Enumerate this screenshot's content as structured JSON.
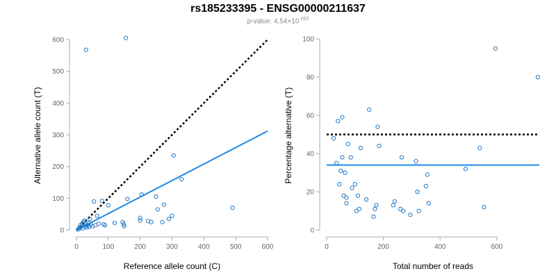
{
  "header": {
    "title": "rs185233395 - ENSG00000211637",
    "subtitle_prefix": "p-value: 4.54×10",
    "subtitle_exponent": "-202"
  },
  "chart_data": [
    {
      "type": "scatter",
      "xlabel": "Reference allele count (C)",
      "ylabel": "Alternative allele count (T)",
      "xlim": [
        0,
        600
      ],
      "ylim": [
        0,
        600
      ],
      "xticks": [
        0,
        100,
        200,
        300,
        400,
        500,
        600
      ],
      "yticks": [
        0,
        100,
        200,
        300,
        400,
        500,
        600
      ],
      "points": [
        [
          5,
          2
        ],
        [
          8,
          4
        ],
        [
          10,
          8
        ],
        [
          12,
          15
        ],
        [
          15,
          10
        ],
        [
          18,
          20
        ],
        [
          20,
          5
        ],
        [
          22,
          25
        ],
        [
          25,
          30
        ],
        [
          28,
          12
        ],
        [
          30,
          18
        ],
        [
          32,
          8
        ],
        [
          35,
          15
        ],
        [
          38,
          22
        ],
        [
          40,
          10
        ],
        [
          42,
          35
        ],
        [
          45,
          18
        ],
        [
          50,
          12
        ],
        [
          55,
          90
        ],
        [
          60,
          15
        ],
        [
          65,
          45
        ],
        [
          70,
          20
        ],
        [
          80,
          92
        ],
        [
          85,
          18
        ],
        [
          90,
          15
        ],
        [
          100,
          78
        ],
        [
          120,
          22
        ],
        [
          145,
          25
        ],
        [
          148,
          18
        ],
        [
          150,
          12
        ],
        [
          160,
          98
        ],
        [
          200,
          38
        ],
        [
          200,
          30
        ],
        [
          205,
          112
        ],
        [
          225,
          28
        ],
        [
          235,
          25
        ],
        [
          250,
          105
        ],
        [
          255,
          65
        ],
        [
          270,
          25
        ],
        [
          275,
          80
        ],
        [
          290,
          35
        ],
        [
          300,
          45
        ],
        [
          305,
          235
        ],
        [
          330,
          160
        ],
        [
          490,
          70
        ],
        [
          30,
          568
        ],
        [
          155,
          605
        ]
      ],
      "fit_line": [
        [
          0,
          0
        ],
        [
          600,
          312
        ]
      ],
      "reference_line": [
        [
          0,
          0
        ],
        [
          600,
          600
        ]
      ]
    },
    {
      "type": "scatter",
      "xlabel": "Total number of reads",
      "ylabel": "Percentage alternative (T)",
      "xlim": [
        0,
        750
      ],
      "ylim": [
        0,
        100
      ],
      "xticks": [
        0,
        200,
        400,
        600
      ],
      "yticks": [
        0,
        20,
        40,
        60,
        80,
        100
      ],
      "points": [
        [
          25,
          48
        ],
        [
          35,
          35
        ],
        [
          40,
          57
        ],
        [
          45,
          24
        ],
        [
          50,
          31
        ],
        [
          55,
          59
        ],
        [
          55,
          38
        ],
        [
          60,
          18
        ],
        [
          65,
          30
        ],
        [
          70,
          14
        ],
        [
          70,
          17
        ],
        [
          75,
          45
        ],
        [
          85,
          38
        ],
        [
          90,
          22
        ],
        [
          100,
          24
        ],
        [
          105,
          10
        ],
        [
          110,
          18
        ],
        [
          115,
          11
        ],
        [
          120,
          43
        ],
        [
          140,
          16
        ],
        [
          150,
          63
        ],
        [
          165,
          7
        ],
        [
          170,
          11
        ],
        [
          175,
          13
        ],
        [
          180,
          54
        ],
        [
          185,
          44
        ],
        [
          235,
          13
        ],
        [
          240,
          15
        ],
        [
          260,
          11
        ],
        [
          265,
          38
        ],
        [
          270,
          10
        ],
        [
          295,
          8
        ],
        [
          315,
          36
        ],
        [
          320,
          20
        ],
        [
          325,
          10
        ],
        [
          350,
          23
        ],
        [
          355,
          29
        ],
        [
          360,
          14
        ],
        [
          490,
          32
        ],
        [
          540,
          43
        ],
        [
          555,
          12
        ],
        [
          595,
          95
        ],
        [
          745,
          80
        ]
      ],
      "fit_line": [
        [
          0,
          34
        ],
        [
          750,
          34
        ]
      ],
      "reference_line": [
        [
          0,
          50
        ],
        [
          750,
          50
        ]
      ]
    }
  ]
}
